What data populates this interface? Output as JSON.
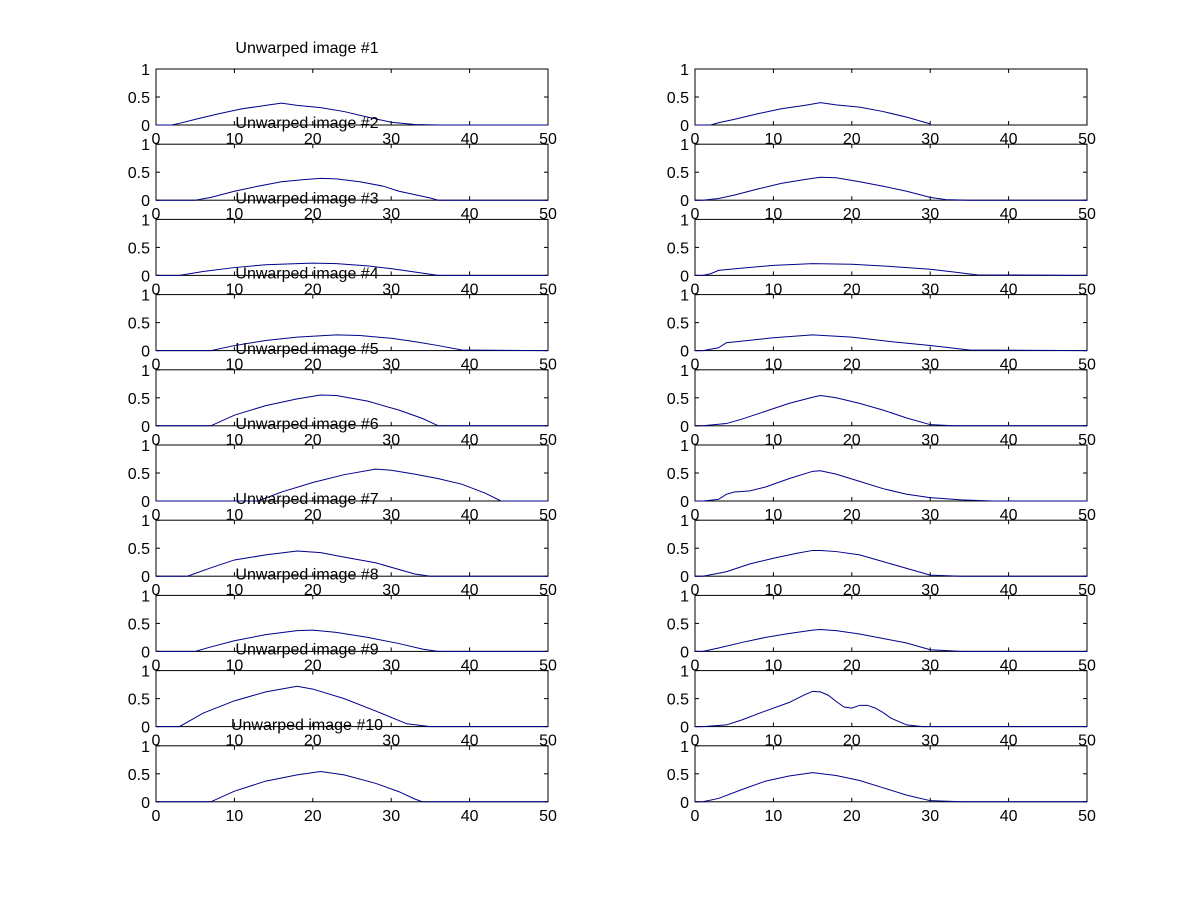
{
  "chart_data": [
    {
      "type": "line",
      "title": "Unwarped image #1",
      "xlim": [
        0,
        50
      ],
      "ylim": [
        0,
        1
      ],
      "xticks": [
        0,
        10,
        20,
        30,
        40,
        50
      ],
      "yticks": [
        0,
        0.5,
        1
      ],
      "series": [
        {
          "color": "#00008b",
          "x": [
            0,
            2,
            3,
            5,
            8,
            11,
            14,
            16,
            18,
            21,
            24,
            27,
            30,
            33,
            36,
            40,
            45,
            50
          ],
          "y": [
            0,
            0,
            0.03,
            0.1,
            0.2,
            0.29,
            0.35,
            0.39,
            0.35,
            0.31,
            0.24,
            0.14,
            0.05,
            0.01,
            0,
            0,
            0,
            0
          ]
        }
      ]
    },
    {
      "type": "line",
      "title": "",
      "xlim": [
        0,
        50
      ],
      "ylim": [
        0,
        1
      ],
      "xticks": [
        0,
        10,
        20,
        30,
        40,
        50
      ],
      "yticks": [
        0,
        0.5,
        1
      ],
      "series": [
        {
          "color": "#00008b",
          "x": [
            0,
            2,
            3,
            5,
            8,
            11,
            14,
            16,
            18,
            21,
            24,
            27,
            30
          ],
          "y": [
            0,
            0,
            0.04,
            0.1,
            0.2,
            0.29,
            0.35,
            0.4,
            0.36,
            0.32,
            0.24,
            0.14,
            0.02
          ]
        }
      ]
    },
    {
      "type": "line",
      "title": "Unwarped image #2",
      "xlim": [
        0,
        50
      ],
      "ylim": [
        0,
        1
      ],
      "xticks": [
        0,
        10,
        20,
        30,
        40,
        50
      ],
      "yticks": [
        0,
        0.5,
        1
      ],
      "series": [
        {
          "color": "#00008b",
          "x": [
            0,
            5,
            7,
            10,
            13,
            16,
            19,
            21,
            23,
            26,
            29,
            31,
            33,
            35,
            36,
            40,
            45,
            50
          ],
          "y": [
            0,
            0,
            0.05,
            0.16,
            0.25,
            0.33,
            0.37,
            0.39,
            0.38,
            0.33,
            0.25,
            0.16,
            0.1,
            0.04,
            0,
            0,
            0,
            0
          ]
        }
      ]
    },
    {
      "type": "line",
      "title": "",
      "xlim": [
        0,
        50
      ],
      "ylim": [
        0,
        1
      ],
      "xticks": [
        0,
        10,
        20,
        30,
        40,
        50
      ],
      "yticks": [
        0,
        0.5,
        1
      ],
      "series": [
        {
          "color": "#00008b",
          "x": [
            0,
            1,
            3,
            5,
            8,
            11,
            14,
            16,
            18,
            21,
            24,
            27,
            30,
            32,
            35,
            50
          ],
          "y": [
            0,
            0,
            0.03,
            0.09,
            0.2,
            0.3,
            0.37,
            0.41,
            0.4,
            0.33,
            0.25,
            0.16,
            0.05,
            0.01,
            0,
            0
          ]
        }
      ]
    },
    {
      "type": "line",
      "title": "Unwarped image #3",
      "xlim": [
        0,
        50
      ],
      "ylim": [
        0,
        1
      ],
      "xticks": [
        0,
        10,
        20,
        30,
        40,
        50
      ],
      "yticks": [
        0,
        0.5,
        1
      ],
      "series": [
        {
          "color": "#00008b",
          "x": [
            0,
            3,
            6,
            10,
            14,
            18,
            20,
            23,
            27,
            30,
            33,
            36,
            50
          ],
          "y": [
            0,
            0,
            0.07,
            0.14,
            0.19,
            0.21,
            0.22,
            0.21,
            0.17,
            0.12,
            0.06,
            0,
            0
          ]
        }
      ]
    },
    {
      "type": "line",
      "title": "",
      "xlim": [
        0,
        50
      ],
      "ylim": [
        0,
        1
      ],
      "xticks": [
        0,
        10,
        20,
        30,
        40,
        50
      ],
      "yticks": [
        0,
        0.5,
        1
      ],
      "series": [
        {
          "color": "#00008b",
          "x": [
            0,
            1,
            2,
            3,
            6,
            10,
            15,
            20,
            25,
            30,
            33,
            36,
            50
          ],
          "y": [
            0,
            0,
            0.03,
            0.09,
            0.13,
            0.18,
            0.21,
            0.2,
            0.16,
            0.11,
            0.06,
            0.01,
            0
          ]
        }
      ]
    },
    {
      "type": "line",
      "title": "Unwarped image #4",
      "xlim": [
        0,
        50
      ],
      "ylim": [
        0,
        1
      ],
      "xticks": [
        0,
        10,
        20,
        30,
        40,
        50
      ],
      "yticks": [
        0,
        0.5,
        1
      ],
      "series": [
        {
          "color": "#00008b",
          "x": [
            0,
            7,
            10,
            14,
            18,
            23,
            26,
            30,
            33,
            36,
            39,
            50
          ],
          "y": [
            0,
            0,
            0.09,
            0.18,
            0.24,
            0.28,
            0.27,
            0.22,
            0.16,
            0.09,
            0.01,
            0
          ]
        }
      ]
    },
    {
      "type": "line",
      "title": "",
      "xlim": [
        0,
        50
      ],
      "ylim": [
        0,
        1
      ],
      "xticks": [
        0,
        10,
        20,
        30,
        40,
        50
      ],
      "yticks": [
        0,
        0.5,
        1
      ],
      "series": [
        {
          "color": "#00008b",
          "x": [
            0,
            1,
            3,
            4,
            6,
            10,
            15,
            20,
            25,
            30,
            35,
            50
          ],
          "y": [
            0,
            0,
            0.05,
            0.14,
            0.17,
            0.23,
            0.28,
            0.24,
            0.16,
            0.09,
            0.01,
            0
          ]
        }
      ]
    },
    {
      "type": "line",
      "title": "Unwarped image #5",
      "xlim": [
        0,
        50
      ],
      "ylim": [
        0,
        1
      ],
      "xticks": [
        0,
        10,
        20,
        30,
        40,
        50
      ],
      "yticks": [
        0,
        0.5,
        1
      ],
      "series": [
        {
          "color": "#00008b",
          "x": [
            0,
            7,
            10,
            14,
            18,
            21,
            23,
            27,
            31,
            34,
            36,
            50
          ],
          "y": [
            0,
            0,
            0.19,
            0.36,
            0.48,
            0.55,
            0.54,
            0.44,
            0.28,
            0.13,
            0,
            0
          ]
        }
      ]
    },
    {
      "type": "line",
      "title": "",
      "xlim": [
        0,
        50
      ],
      "ylim": [
        0,
        1
      ],
      "xticks": [
        0,
        10,
        20,
        30,
        40,
        50
      ],
      "yticks": [
        0,
        0.5,
        1
      ],
      "series": [
        {
          "color": "#00008b",
          "x": [
            0,
            1,
            4,
            6,
            9,
            12,
            15,
            16,
            18,
            21,
            24,
            27,
            30,
            33,
            50
          ],
          "y": [
            0,
            0,
            0.04,
            0.12,
            0.26,
            0.4,
            0.51,
            0.54,
            0.5,
            0.4,
            0.28,
            0.14,
            0.02,
            0,
            0
          ]
        }
      ]
    },
    {
      "type": "line",
      "title": "Unwarped image #6",
      "xlim": [
        0,
        50
      ],
      "ylim": [
        0,
        1
      ],
      "xticks": [
        0,
        10,
        20,
        30,
        40,
        50
      ],
      "yticks": [
        0,
        0.5,
        1
      ],
      "series": [
        {
          "color": "#00008b",
          "x": [
            0,
            13,
            16,
            20,
            24,
            28,
            30,
            33,
            36,
            39,
            42,
            44,
            50
          ],
          "y": [
            0,
            0,
            0.16,
            0.33,
            0.47,
            0.57,
            0.55,
            0.48,
            0.4,
            0.3,
            0.14,
            0,
            0
          ]
        }
      ]
    },
    {
      "type": "line",
      "title": "",
      "xlim": [
        0,
        50
      ],
      "ylim": [
        0,
        1
      ],
      "xticks": [
        0,
        10,
        20,
        30,
        40,
        50
      ],
      "yticks": [
        0,
        0.5,
        1
      ],
      "series": [
        {
          "color": "#00008b",
          "x": [
            0,
            1,
            3,
            4,
            5,
            7,
            9,
            12,
            15,
            16,
            18,
            21,
            24,
            27,
            30,
            34,
            38,
            50
          ],
          "y": [
            0,
            0,
            0.03,
            0.12,
            0.16,
            0.18,
            0.25,
            0.4,
            0.53,
            0.54,
            0.48,
            0.35,
            0.22,
            0.12,
            0.06,
            0.02,
            0,
            0
          ]
        }
      ]
    },
    {
      "type": "line",
      "title": "Unwarped image #7",
      "xlim": [
        0,
        50
      ],
      "ylim": [
        0,
        1
      ],
      "xticks": [
        0,
        10,
        20,
        30,
        40,
        50
      ],
      "yticks": [
        0,
        0.5,
        1
      ],
      "series": [
        {
          "color": "#00008b",
          "x": [
            0,
            4,
            7,
            10,
            14,
            18,
            21,
            24,
            28,
            31,
            33,
            35,
            50
          ],
          "y": [
            0,
            0,
            0.15,
            0.29,
            0.38,
            0.45,
            0.42,
            0.34,
            0.24,
            0.12,
            0.04,
            0,
            0
          ]
        }
      ]
    },
    {
      "type": "line",
      "title": "",
      "xlim": [
        0,
        50
      ],
      "ylim": [
        0,
        1
      ],
      "xticks": [
        0,
        10,
        20,
        30,
        40,
        50
      ],
      "yticks": [
        0,
        0.5,
        1
      ],
      "series": [
        {
          "color": "#00008b",
          "x": [
            0,
            1,
            4,
            7,
            10,
            13,
            15,
            16,
            18,
            21,
            24,
            27,
            30,
            34,
            50
          ],
          "y": [
            0,
            0,
            0.08,
            0.22,
            0.32,
            0.41,
            0.46,
            0.46,
            0.44,
            0.38,
            0.26,
            0.14,
            0.02,
            0,
            0
          ]
        }
      ]
    },
    {
      "type": "line",
      "title": "Unwarped image #8",
      "xlim": [
        0,
        50
      ],
      "ylim": [
        0,
        1
      ],
      "xticks": [
        0,
        10,
        20,
        30,
        40,
        50
      ],
      "yticks": [
        0,
        0.5,
        1
      ],
      "series": [
        {
          "color": "#00008b",
          "x": [
            0,
            5,
            7,
            10,
            14,
            18,
            20,
            23,
            27,
            31,
            34,
            36,
            50
          ],
          "y": [
            0,
            0,
            0.08,
            0.19,
            0.3,
            0.37,
            0.38,
            0.34,
            0.25,
            0.14,
            0.04,
            0,
            0
          ]
        }
      ]
    },
    {
      "type": "line",
      "title": "",
      "xlim": [
        0,
        50
      ],
      "ylim": [
        0,
        1
      ],
      "xticks": [
        0,
        10,
        20,
        30,
        40,
        50
      ],
      "yticks": [
        0,
        0.5,
        1
      ],
      "series": [
        {
          "color": "#00008b",
          "x": [
            0,
            1,
            3,
            6,
            9,
            12,
            15,
            16,
            18,
            21,
            24,
            27,
            30,
            34,
            50
          ],
          "y": [
            0,
            0,
            0.06,
            0.16,
            0.25,
            0.32,
            0.38,
            0.39,
            0.37,
            0.31,
            0.23,
            0.15,
            0.03,
            0,
            0
          ]
        }
      ]
    },
    {
      "type": "line",
      "title": "Unwarped image #9",
      "xlim": [
        0,
        50
      ],
      "ylim": [
        0,
        1
      ],
      "xticks": [
        0,
        10,
        20,
        30,
        40,
        50
      ],
      "yticks": [
        0,
        0.5,
        1
      ],
      "series": [
        {
          "color": "#00008b",
          "x": [
            0,
            3,
            6,
            10,
            14,
            18,
            20,
            24,
            28,
            32,
            35,
            50
          ],
          "y": [
            0,
            0,
            0.24,
            0.46,
            0.62,
            0.72,
            0.67,
            0.5,
            0.28,
            0.05,
            0,
            0
          ]
        }
      ]
    },
    {
      "type": "line",
      "title": "",
      "xlim": [
        0,
        50
      ],
      "ylim": [
        0,
        1
      ],
      "xticks": [
        0,
        10,
        20,
        30,
        40,
        50
      ],
      "yticks": [
        0,
        0.5,
        1
      ],
      "series": [
        {
          "color": "#00008b",
          "x": [
            0,
            1,
            4,
            6,
            9,
            12,
            14,
            15,
            16,
            17,
            18,
            19,
            20,
            21,
            22,
            23,
            24,
            25,
            27,
            29,
            30,
            50
          ],
          "y": [
            0,
            0,
            0.03,
            0.12,
            0.28,
            0.43,
            0.57,
            0.63,
            0.62,
            0.56,
            0.45,
            0.35,
            0.33,
            0.38,
            0.38,
            0.33,
            0.25,
            0.15,
            0.03,
            0,
            0,
            0
          ]
        }
      ]
    },
    {
      "type": "line",
      "title": "Unwarped image #10",
      "xlim": [
        0,
        50
      ],
      "ylim": [
        0,
        1
      ],
      "xticks": [
        0,
        10,
        20,
        30,
        40,
        50
      ],
      "yticks": [
        0,
        0.5,
        1
      ],
      "series": [
        {
          "color": "#00008b",
          "x": [
            0,
            7,
            10,
            14,
            18,
            21,
            24,
            28,
            31,
            33,
            34,
            50
          ],
          "y": [
            0,
            0,
            0.19,
            0.37,
            0.48,
            0.54,
            0.48,
            0.33,
            0.18,
            0.05,
            0,
            0
          ]
        }
      ]
    },
    {
      "type": "line",
      "title": "",
      "xlim": [
        0,
        50
      ],
      "ylim": [
        0,
        1
      ],
      "xticks": [
        0,
        10,
        20,
        30,
        40,
        50
      ],
      "yticks": [
        0,
        0.5,
        1
      ],
      "series": [
        {
          "color": "#00008b",
          "x": [
            0,
            1,
            3,
            6,
            9,
            12,
            15,
            18,
            21,
            24,
            27,
            30,
            34,
            50
          ],
          "y": [
            0,
            0,
            0.06,
            0.22,
            0.37,
            0.46,
            0.52,
            0.47,
            0.38,
            0.25,
            0.12,
            0.02,
            0,
            0
          ]
        }
      ]
    }
  ]
}
